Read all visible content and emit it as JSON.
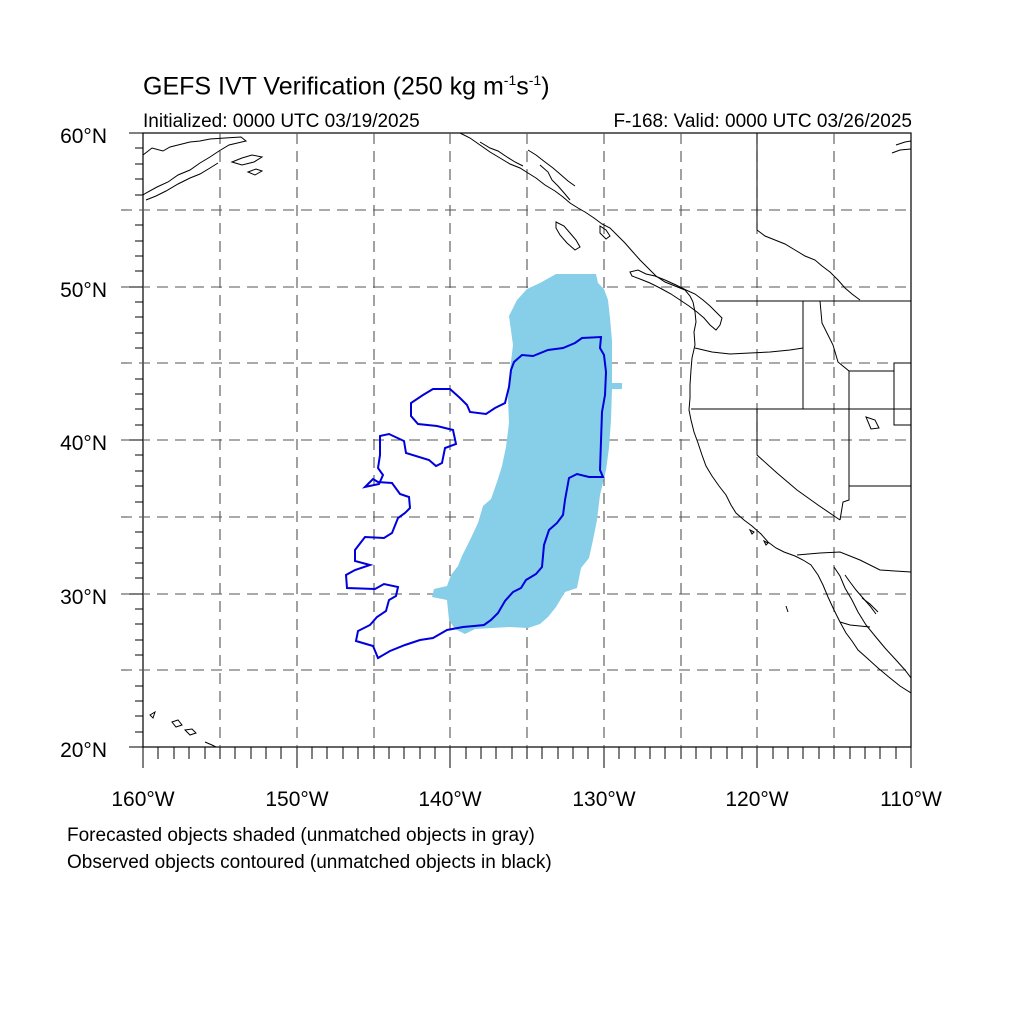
{
  "title": {
    "main": "GEFS IVT Verification (250 kg m",
    "sup1": "-1",
    "mid": "s",
    "sup2": "-1",
    "end": ")"
  },
  "subtitle": {
    "initialized": "Initialized: 0000 UTC 03/19/2025",
    "valid": "F-168: Valid: 0000 UTC 03/26/2025"
  },
  "axes": {
    "lat_labels": [
      "20°N",
      "30°N",
      "40°N",
      "50°N",
      "60°N"
    ],
    "lon_labels": [
      "160°W",
      "150°W",
      "140°W",
      "130°W",
      "120°W",
      "110°W"
    ],
    "lat_range": [
      20,
      60
    ],
    "lon_range": [
      -160,
      -110
    ],
    "grid": "dashed every 5 degrees"
  },
  "legend": {
    "forecast": "Forecasted objects shaded (unmatched objects in gray)",
    "observed": "Observed objects contoured (unmatched objects in black)"
  },
  "colors": {
    "forecast_fill": "#87cee8",
    "observed_contour": "#0000dd",
    "coastline": "#000000",
    "grid": "#555555"
  }
}
